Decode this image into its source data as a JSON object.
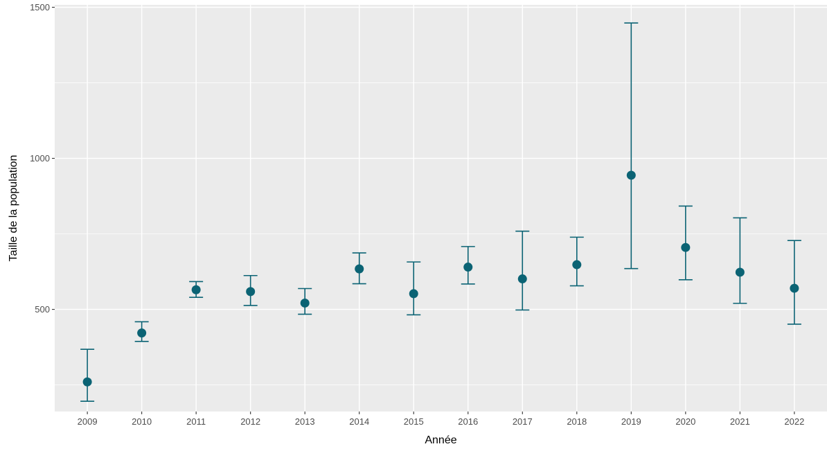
{
  "chart_data": {
    "type": "scatter",
    "subtype": "point-with-errorbars",
    "title": "",
    "xlabel": "Année",
    "ylabel": "Taille de la population",
    "categories": [
      "2009",
      "2010",
      "2011",
      "2012",
      "2013",
      "2014",
      "2015",
      "2016",
      "2017",
      "2018",
      "2019",
      "2020",
      "2021",
      "2022"
    ],
    "values": [
      260,
      422,
      565,
      559,
      521,
      634,
      552,
      640,
      601,
      648,
      944,
      705,
      623,
      570
    ],
    "lower": [
      196,
      394,
      540,
      513,
      484,
      585,
      482,
      584,
      498,
      578,
      635,
      598,
      520,
      451
    ],
    "upper": [
      368,
      459,
      592,
      612,
      569,
      687,
      657,
      708,
      759,
      739,
      1448,
      842,
      803,
      728
    ],
    "ylim": [
      162,
      1508
    ],
    "y_ticks": [
      500,
      1000,
      1500
    ],
    "grid": true,
    "colors": {
      "series": "#0b6374",
      "panel_background": "#ebebeb",
      "grid": "#ffffff",
      "tick_text": "#4d4d4d",
      "tick_mark": "#333333"
    }
  }
}
